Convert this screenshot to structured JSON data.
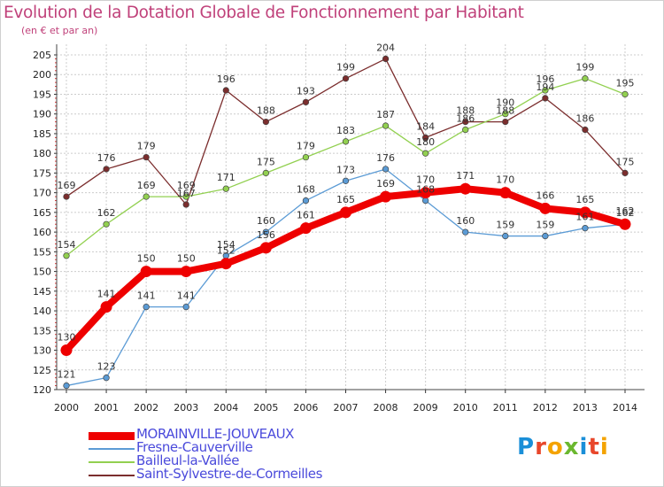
{
  "title": "Evolution de la Dotation Globale de Fonctionnement par Habitant",
  "subtitle": "(en € et par an)",
  "chart_data": {
    "type": "line",
    "title": "Evolution de la Dotation Globale de Fonctionnement par Habitant",
    "ylabel": "(en € et par an)",
    "xlabel": "",
    "x": [
      2000,
      2001,
      2002,
      2003,
      2004,
      2005,
      2006,
      2007,
      2008,
      2009,
      2010,
      2011,
      2012,
      2013,
      2014
    ],
    "x_ticks": [
      "2000",
      "2001",
      "2002",
      "2003",
      "2004",
      "2005",
      "2006",
      "2007",
      "2008",
      "2009",
      "2010",
      "2011",
      "2012",
      "2013",
      "2014"
    ],
    "ylim": [
      120,
      205
    ],
    "y_ticks": [
      "120",
      "125",
      "130",
      "135",
      "140",
      "145",
      "150",
      "155",
      "160",
      "165",
      "170",
      "175",
      "180",
      "185",
      "190",
      "195",
      "200",
      "205"
    ],
    "grid": true,
    "legend_position": "bottom-left",
    "series": [
      {
        "name": "MORAINVILLE-JOUVEAUX",
        "color": "#ee0000",
        "values": [
          130,
          141,
          150,
          150,
          152,
          156,
          161,
          165,
          169,
          170,
          171,
          170,
          166,
          165,
          162
        ]
      },
      {
        "name": "Fresne-Cauverville",
        "color": "#5b9bd5",
        "values": [
          121,
          123,
          141,
          141,
          154,
          160,
          168,
          173,
          176,
          168,
          160,
          159,
          159,
          161,
          162
        ]
      },
      {
        "name": "Bailleul-la-Vallée",
        "color": "#92d050",
        "values": [
          154,
          162,
          169,
          169,
          171,
          175,
          179,
          183,
          187,
          180,
          186,
          190,
          196,
          199,
          195
        ]
      },
      {
        "name": "Saint-Sylvestre-de-Cormeilles",
        "color": "#7b2d2d",
        "values": [
          169,
          176,
          179,
          167,
          196,
          188,
          193,
          199,
          204,
          184,
          188,
          188,
          194,
          186,
          175
        ]
      }
    ]
  },
  "logo": {
    "letters": [
      "P",
      "r",
      "o",
      "x",
      "i",
      "t",
      "i"
    ],
    "colors": [
      "#1a8fd8",
      "#e8472b",
      "#f4a300",
      "#6bb82f",
      "#1a8fd8",
      "#e8472b",
      "#f4a300"
    ]
  }
}
